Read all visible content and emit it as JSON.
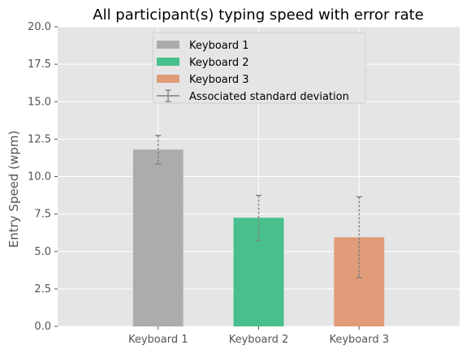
{
  "chart_data": {
    "type": "bar",
    "title": "All participant(s) typing speed with error rate",
    "xlabel": "",
    "ylabel": "Entry Speed (wpm)",
    "ylim": [
      0,
      20
    ],
    "yticks": [
      "0.0",
      "2.5",
      "5.0",
      "7.5",
      "10.0",
      "12.5",
      "15.0",
      "17.5",
      "20.0"
    ],
    "categories": [
      "Keyboard 1",
      "Keyboard 2",
      "Keyboard 3"
    ],
    "values": [
      11.8,
      7.25,
      5.95
    ],
    "errors": [
      0.95,
      1.5,
      2.7
    ],
    "colors": [
      "#acacac",
      "#48bf8c",
      "#e09b79"
    ],
    "error_color": "#808080",
    "grid": true,
    "legend_position": "top-center",
    "legend": [
      {
        "label": "Keyboard 1",
        "kind": "patch",
        "color": "#acacac"
      },
      {
        "label": "Keyboard 2",
        "kind": "patch",
        "color": "#48bf8c"
      },
      {
        "label": "Keyboard 3",
        "kind": "patch",
        "color": "#e09b79"
      },
      {
        "label": "Associated standard deviation",
        "kind": "errorbar",
        "color": "#808080"
      }
    ]
  }
}
